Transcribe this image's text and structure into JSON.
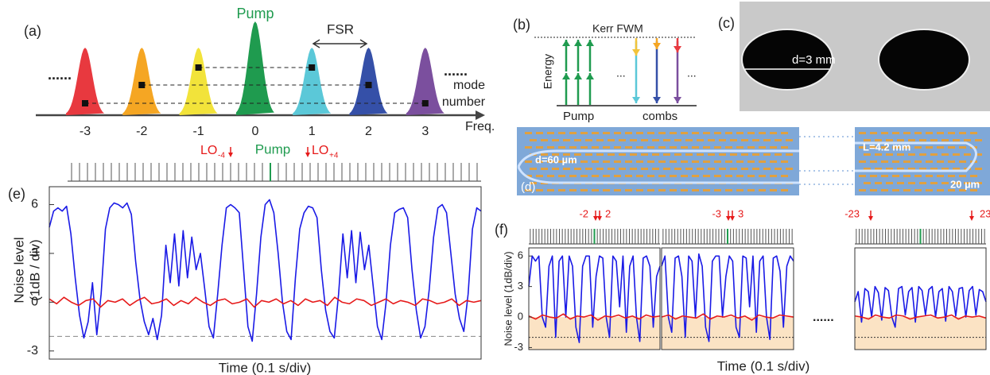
{
  "panel_a": {
    "label": "(a)",
    "pump": "Pump",
    "fsr": "FSR",
    "dots_left": "......",
    "dots_right": "......",
    "mode_number": [
      "mode",
      "number"
    ],
    "freq": "Freq.",
    "modes": [
      -3,
      -2,
      -1,
      0,
      1,
      2,
      3
    ],
    "colors": [
      "#e8393f",
      "#f5a623",
      "#f2e33a",
      "#1f9b4f",
      "#5bc8d8",
      "#3550a8",
      "#7b4f9e"
    ]
  },
  "panel_b": {
    "label": "(b)",
    "kerr": "Kerr FWM",
    "energy": "Energy",
    "pump": "Pump",
    "combs": "combs",
    "ellipsis": "..."
  },
  "panel_c": {
    "label": "(c)",
    "diameter": "d=3 mm"
  },
  "panel_d": {
    "label": "(d)",
    "width": "d=60 µm",
    "length": "L=4.2 mm",
    "gap": "20 µm"
  },
  "panel_e": {
    "label": "(e)",
    "lo_minus": "LO",
    "lo_minus_sub": "-4",
    "pump": "Pump",
    "lo_plus": "LO",
    "lo_plus_sub": "+4",
    "y_label": [
      "Noise level",
      "(1dB / div)"
    ],
    "x_label": "Time (0.1 s/div)",
    "ylim": [
      -3.5,
      7.1
    ],
    "yticks": [
      -3,
      0,
      3,
      6
    ],
    "reference": -2.1,
    "series": [
      {
        "color": "#1a1ae6",
        "values": [
          4.6,
          5.6,
          5.8,
          5.6,
          5.9,
          4.2,
          1.5,
          -0.8,
          -2.2,
          -1.2,
          1.2,
          -2.0,
          0.5,
          4.5,
          5.8,
          6.1,
          6.0,
          5.8,
          6.1,
          5.4,
          2.5,
          0.2,
          -1.2,
          -2.0,
          -1.0,
          -2.3,
          -0.8,
          3.5,
          1.2,
          4.2,
          1.0,
          4.4,
          1.5,
          4.0,
          2.0,
          3.0,
          0.8,
          -1.5,
          -2.2,
          0.5,
          3.5,
          5.8,
          6.0,
          5.8,
          5.5,
          2.0,
          -1.5,
          -2.4,
          0.5,
          4.0,
          6.0,
          6.3,
          5.5,
          3.0,
          0.0,
          -1.8,
          -2.3,
          1.5,
          4.5,
          5.5,
          5.9,
          5.8,
          5.2,
          2.0,
          -0.5,
          -1.8,
          -2.2,
          0.5,
          4.2,
          1.5,
          4.4,
          1.2,
          4.3,
          2.0,
          3.5,
          1.0,
          -1.5,
          -2.3,
          0.0,
          3.5,
          5.5,
          5.7,
          5.8,
          5.2,
          2.0,
          -0.5,
          -2.2,
          -1.5,
          0.8,
          4.0,
          5.8,
          6.0,
          5.5,
          3.0,
          0.5,
          -1.0,
          -1.8,
          0.5,
          4.5,
          5.8,
          5.6
        ]
      },
      {
        "color": "#e61a1a",
        "values": [
          0.2,
          -0.1,
          0.3,
          0.0,
          -0.2,
          0.1,
          0.2,
          -0.3,
          0.1,
          0.0,
          0.2,
          -0.2,
          0.1,
          0.3,
          -0.1,
          0.0,
          0.2,
          -0.2,
          0.1,
          -0.1,
          0.3,
          0.0,
          -0.2,
          0.1,
          0.2,
          -0.1,
          0.0,
          0.2,
          -0.3,
          0.1,
          0.0,
          0.2,
          -0.1,
          0.1,
          -0.2,
          0.2,
          0.0,
          0.1,
          -0.2,
          0.3,
          0.0,
          -0.1,
          0.2,
          0.1,
          -0.2,
          0.0,
          0.2,
          -0.1,
          0.1,
          0.0,
          -0.2,
          0.2,
          0.1,
          -0.1,
          0.0,
          0.2,
          -0.2,
          0.1,
          0.0,
          0.1
        ]
      }
    ]
  },
  "panel_f": {
    "label": "(f)",
    "y_label": "Noise level (1dB/div)",
    "x_label": "Time (0.1 s/div)",
    "ellipsis": "......",
    "ylim": [
      -3.2,
      6.8
    ],
    "yticks": [
      -3,
      0,
      3,
      6
    ],
    "reference": -2,
    "subplots": [
      {
        "lo": [
          -2,
          2
        ],
        "blue": [
          3,
          6,
          5.5,
          6,
          0,
          -1,
          5,
          6,
          -2,
          5.5,
          6,
          0,
          6,
          5,
          -1,
          -2.5,
          5,
          6,
          6,
          -1,
          4,
          6,
          5.8,
          0,
          -2,
          6,
          5.5,
          1,
          6,
          -1.5,
          5,
          6,
          0,
          -2.4,
          5.8,
          6,
          5,
          -1,
          4,
          5
        ],
        "red": [
          0.1,
          -0.2,
          0.2,
          0.0,
          -0.1,
          0.3,
          -0.2,
          0.1,
          0.0,
          0.2,
          -0.3,
          0.1,
          0.0,
          0.2,
          -0.1,
          0.1,
          -0.2,
          0.2,
          0.0,
          0.1
        ]
      },
      {
        "lo": [
          -3,
          3
        ],
        "blue": [
          5,
          6,
          0,
          -1.5,
          5.8,
          6,
          4,
          -2,
          6,
          5.5,
          0,
          6.2,
          5,
          -1,
          -2.4,
          5.5,
          6,
          6,
          0,
          4,
          6,
          5.5,
          -1,
          -2,
          6,
          5.8,
          1,
          6,
          -1.5,
          5.5,
          6,
          0,
          -2.2,
          5.8,
          6,
          4.5,
          -1,
          5,
          6,
          5.5
        ],
        "red": [
          0.0,
          0.2,
          -0.2,
          0.1,
          0.0,
          -0.1,
          0.3,
          -0.2,
          0.1,
          0.0,
          0.2,
          -0.1,
          0.1,
          -0.3,
          0.2,
          0.0,
          -0.1,
          0.2,
          0.1,
          0.0
        ]
      },
      {
        "lo": [
          -23,
          23
        ],
        "blue": [
          1.5,
          2.5,
          -0.5,
          2.8,
          2.5,
          0,
          3,
          2.4,
          -0.3,
          2.9,
          2.6,
          0,
          -1,
          2.8,
          3,
          0.2,
          2.5,
          2.9,
          -0.5,
          3,
          2.6,
          0.2,
          2.7,
          3,
          0,
          2.5,
          2.8,
          -0.4,
          3,
          2.5,
          0.1,
          2.8,
          2.9,
          0,
          2.6,
          3,
          0.2,
          2.7,
          2.5,
          1.5
        ],
        "red": [
          0.1,
          0.0,
          -0.2,
          0.2,
          0.0,
          -0.1,
          0.2,
          0.1,
          -0.2,
          0.0,
          0.1,
          0.2,
          -0.1,
          0.0,
          0.2,
          -0.2,
          0.1,
          0.0,
          0.1,
          -0.1
        ]
      }
    ]
  }
}
